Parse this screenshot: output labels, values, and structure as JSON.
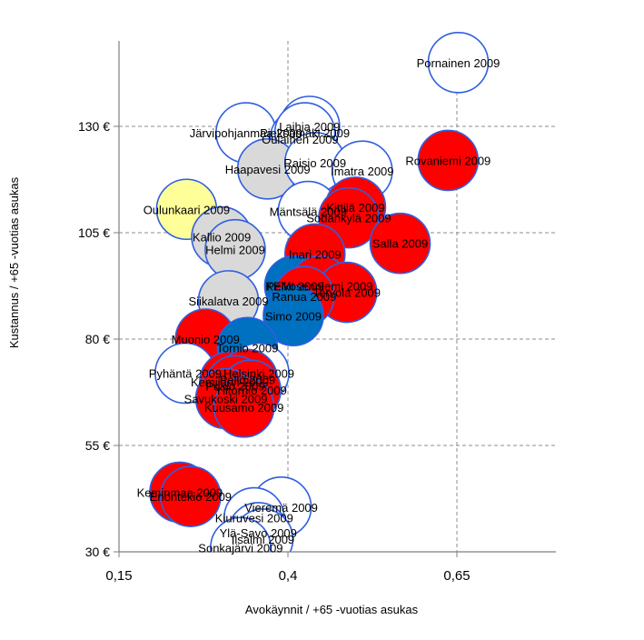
{
  "chart_data": {
    "type": "scatter",
    "title": "",
    "xlabel": "Avokäynnit  / +65 -vuotias  asukas",
    "ylabel": "Kustannus  / +65 -vuotias  asukas",
    "xlim": [
      0.15,
      0.75
    ],
    "ylim": [
      30,
      150
    ],
    "x_ticks": [
      0.15,
      0.4,
      0.65
    ],
    "x_tick_labels": [
      "0,15",
      "0,4",
      "0,65"
    ],
    "y_ticks": [
      30,
      55,
      80,
      105,
      130
    ],
    "y_tick_labels": [
      "30 €",
      "55 €",
      "80 €",
      "105 €",
      "130 €"
    ],
    "grid": "dashed",
    "bubble_border_color": "#2f5fe0",
    "colors": {
      "white": "#ffffff",
      "red": "#ff0000",
      "gray": "#d9d9d9",
      "yellow": "#ffff99",
      "blue": "#0070c0"
    },
    "points": [
      {
        "label": "Pornainen 2009",
        "x": 0.652,
        "y": 145,
        "color": "white"
      },
      {
        "label": "Järvipohjanmaa 2009",
        "x": 0.338,
        "y": 128.5,
        "color": "white"
      },
      {
        "label": "Laihia 2009",
        "x": 0.432,
        "y": 130,
        "color": "white"
      },
      {
        "label": "Oulainen 2009",
        "x": 0.418,
        "y": 127,
        "color": "white"
      },
      {
        "label": "Pieksämäki 2009",
        "x": 0.425,
        "y": 128.5,
        "color": "white"
      },
      {
        "label": "Haapavesi 2009",
        "x": 0.37,
        "y": 120,
        "color": "gray"
      },
      {
        "label": "Raisio 2009",
        "x": 0.44,
        "y": 121.5,
        "color": "white"
      },
      {
        "label": "Imatra 2009",
        "x": 0.51,
        "y": 119.5,
        "color": "white"
      },
      {
        "label": "Rovaniemi 2009",
        "x": 0.637,
        "y": 122,
        "color": "red"
      },
      {
        "label": "Oulunkaari 2009",
        "x": 0.25,
        "y": 110.5,
        "color": "yellow"
      },
      {
        "label": "Mäntsälä 2009",
        "x": 0.43,
        "y": 110,
        "color": "white"
      },
      {
        "label": "Kittilä 2009",
        "x": 0.5,
        "y": 111,
        "color": "red"
      },
      {
        "label": "Sodankylä 2009",
        "x": 0.49,
        "y": 108.5,
        "color": "red"
      },
      {
        "label": "Kallio 2009",
        "x": 0.302,
        "y": 104,
        "color": "gray"
      },
      {
        "label": "Helmi 2009",
        "x": 0.322,
        "y": 101,
        "color": "gray"
      },
      {
        "label": "Salla 2009",
        "x": 0.566,
        "y": 102.5,
        "color": "red"
      },
      {
        "label": "Inari 2009",
        "x": 0.44,
        "y": 100,
        "color": "red"
      },
      {
        "label": "KEMI 2009",
        "x": 0.41,
        "y": 92.5,
        "color": "blue"
      },
      {
        "label": "Pelkosenniemi 2009",
        "x": 0.447,
        "y": 92.5,
        "color": "red"
      },
      {
        "label": "Tervola 2009",
        "x": 0.487,
        "y": 91,
        "color": "red"
      },
      {
        "label": "Ranua 2009",
        "x": 0.424,
        "y": 90,
        "color": "red"
      },
      {
        "label": "Siikalatva 2009",
        "x": 0.312,
        "y": 89,
        "color": "gray"
      },
      {
        "label": "Simo 2009",
        "x": 0.408,
        "y": 85.5,
        "color": "blue"
      },
      {
        "label": "Muonio 2009",
        "x": 0.278,
        "y": 80,
        "color": "red"
      },
      {
        "label": "Tornio 2009",
        "x": 0.34,
        "y": 78,
        "color": "blue"
      },
      {
        "label": "Pyhäntä 2009",
        "x": 0.248,
        "y": 72,
        "color": "white"
      },
      {
        "label": "Helsinki 2009",
        "x": 0.357,
        "y": 72,
        "color": "white"
      },
      {
        "label": "Kemijärvi 2009",
        "x": 0.314,
        "y": 70,
        "color": "red"
      },
      {
        "label": "Pello 2009",
        "x": 0.34,
        "y": 70.5,
        "color": "red"
      },
      {
        "label": "Posio 2009",
        "x": 0.322,
        "y": 69,
        "color": "red"
      },
      {
        "label": "Ylitornio 2009",
        "x": 0.345,
        "y": 68,
        "color": "red"
      },
      {
        "label": "Savukoski 2009",
        "x": 0.308,
        "y": 66,
        "color": "red"
      },
      {
        "label": "Kuusamo 2009",
        "x": 0.335,
        "y": 64,
        "color": "red"
      },
      {
        "label": "Keminmaa 2009",
        "x": 0.24,
        "y": 44,
        "color": "red"
      },
      {
        "label": "Enontekiö 2009",
        "x": 0.256,
        "y": 43,
        "color": "red"
      },
      {
        "label": "Vieremä 2009",
        "x": 0.39,
        "y": 40.5,
        "color": "white"
      },
      {
        "label": "Kiuruvesi 2009",
        "x": 0.35,
        "y": 38,
        "color": "white"
      },
      {
        "label": "Ylä-Savo 2009",
        "x": 0.356,
        "y": 34.5,
        "color": "white"
      },
      {
        "label": "Iisalmi 2009",
        "x": 0.363,
        "y": 33,
        "color": "white"
      },
      {
        "label": "Sonkajärvi 2009",
        "x": 0.33,
        "y": 31,
        "color": "white"
      }
    ]
  }
}
